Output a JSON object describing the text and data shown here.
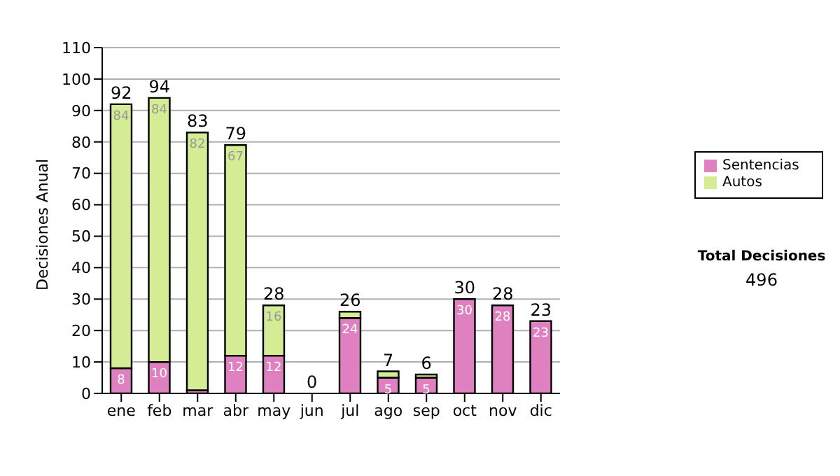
{
  "chart_data": {
    "type": "bar",
    "stacked": true,
    "ylabel": "Decisiones Anual",
    "categories": [
      "ene",
      "feb",
      "mar",
      "abr",
      "may",
      "jun",
      "jul",
      "ago",
      "sep",
      "oct",
      "nov",
      "dic"
    ],
    "series": [
      {
        "name": "Sentencias",
        "color": "#df80c0",
        "values": [
          8,
          10,
          1,
          12,
          12,
          0,
          24,
          5,
          5,
          30,
          28,
          23
        ],
        "value_labels": [
          "8",
          "10",
          null,
          "12",
          "12",
          null,
          "24",
          "5",
          "5",
          "30",
          "28",
          "23"
        ]
      },
      {
        "name": "Autos",
        "color": "#d4ec94",
        "values": [
          84,
          84,
          82,
          67,
          16,
          0,
          2,
          2,
          1,
          0,
          0,
          0
        ],
        "value_labels": [
          "84",
          "84",
          "82",
          "67",
          "16",
          null,
          null,
          null,
          null,
          null,
          null,
          null
        ]
      }
    ],
    "totals": [
      "92",
      "94",
      "83",
      "79",
      "28",
      "0",
      "26",
      "7",
      "6",
      "30",
      "28",
      "23"
    ],
    "ylim": [
      0,
      110
    ],
    "yticks": [
      0,
      10,
      20,
      30,
      40,
      50,
      60,
      70,
      80,
      90,
      100,
      110
    ],
    "grid": "y",
    "legend": "right",
    "annotations": [
      "Total Decisiones",
      "496"
    ]
  }
}
